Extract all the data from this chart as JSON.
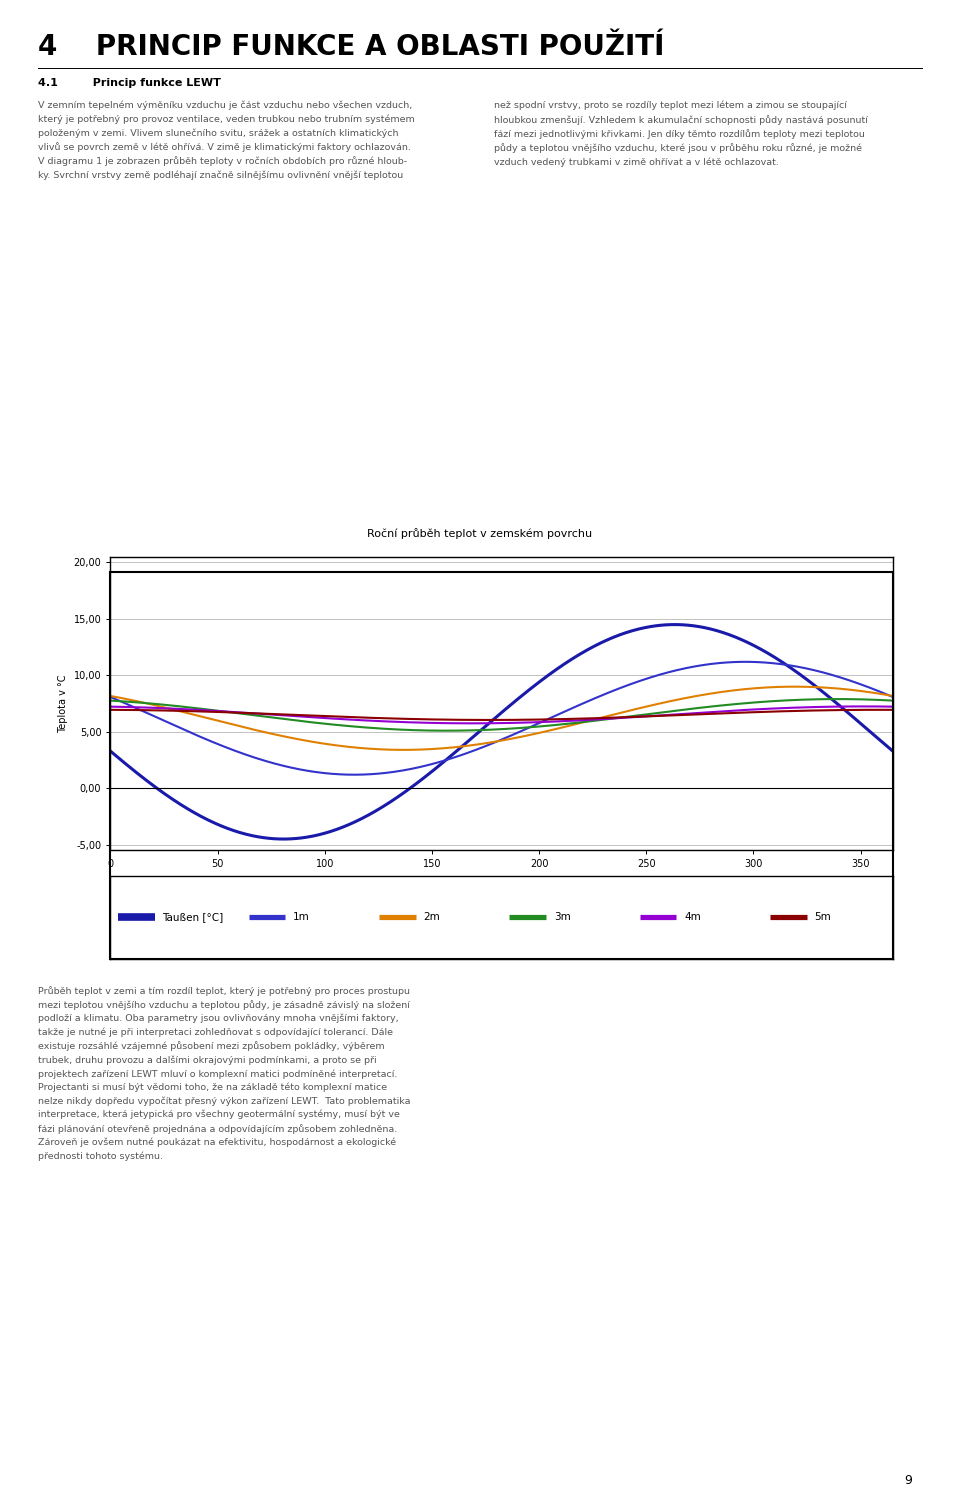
{
  "page_title": "4    PRINCIP FUNKCE A OBLASTI POUŽITÍ",
  "section_title": "4.1         Princip funkce LEWT",
  "para1_left": "V zemním tepelném výměníku vzduchu je část vzduchu nebo všechen vzduch,\nkterý je potřebný pro provoz ventilace, veden trubkou nebo trubním systémem\npoloženým v zemi. Vlivem slunečního svitu, srážek a ostatních klimatických\nvlivů se povrch země v létě ohřívá. V zimě je klimatickými faktory ochlazován.\nV diagramu 1 je zobrazen průběh teploty v ročních obdobích pro různé hloub-\nky. Svrchní vrstvy země podléhají značně silnějšímu ovlivnění vnější teplotou",
  "para1_right": "než spodní vrstvy, proto se rozdíly teplot mezi létem a zimou se stoupající\nhloubkou zmenšují. Vzhledem k akumulační schopnosti půdy nastává posunutí\nfází mezi jednotlivými křivkami. Jen díky těmto rozdílům teploty mezi teplotou\npůdy a teplotou vnějšího vzduchu, které jsou v průběhu roku různé, je možné\nvzduch vedený trubkami v zimě ohřívat a v létě ochlazovat.",
  "chart_title": "Roční průběh teplot v zemském povrchu",
  "ylabel": "Teplota v °C",
  "ylim": [
    -5.5,
    20.5
  ],
  "xlim": [
    0,
    365
  ],
  "yticks": [
    -5.0,
    0.0,
    5.0,
    10.0,
    15.0,
    20.0
  ],
  "ytick_labels": [
    "-5,00",
    "0,00",
    "5,00",
    "10,00",
    "15,00",
    "20,00"
  ],
  "xticks": [
    0,
    50,
    100,
    150,
    200,
    250,
    300,
    350
  ],
  "xtick_labels": [
    "0",
    "50",
    "100",
    "150",
    "200",
    "250",
    "300",
    "350"
  ],
  "series_params": [
    [
      "Taußen [°C]",
      "#1a1aaa",
      2.2,
      9.5,
      5.0,
      172
    ],
    [
      "1m",
      "#3333cc",
      1.5,
      5.0,
      6.2,
      205
    ],
    [
      "2m",
      "#e08000",
      1.5,
      2.8,
      6.2,
      228
    ],
    [
      "3m",
      "#228B22",
      1.5,
      1.4,
      6.5,
      248
    ],
    [
      "4m",
      "#9400D3",
      1.5,
      0.75,
      6.5,
      260
    ],
    [
      "5m",
      "#8B0000",
      1.5,
      0.45,
      6.5,
      268
    ]
  ],
  "para2": "Průběh teplot v zemi a tím rozdíl teplot, který je potřebný pro proces prostupu\nmezi teplotou vnějšího vzduchu a teplotou půdy, je zásadně závislý na složení\npodloží a klimatu. Oba parametry jsou ovlivňovány mnoha vnějšími faktory,\ntakže je nutné je při interpretaci zohledňovat s odpovídající tolerancí. Dále\nexistuje rozsáhlé vzájemné působení mezi způsobem pokládky, výběrem\ntrubek, druhu provozu a dalšími okrajovými podmínkami, a proto se při\nprojektech zařízení LEWT mluví o komplexní matici podmíněné interpretací.\nProjectanti si musí být vědomi toho, že na základě této komplexní matice\nnelze nikdy dopředu vypočítat přesný výkon zařízení LEWT.  Tato problematika\ninterpretace, která jetypická pro všechny geotermální systémy, musí být ve\nfázi plánování otevřeně projednána a odpovídajícím způsobem zohledněna.\nZároveň je ovšem nutné poukázat na efektivitu, hospodárnost a ekologické\npřednosti tohoto systému.",
  "page_number": "9",
  "background": "#ffffff",
  "text_color": "#555555",
  "grid_color": "#aaaaaa",
  "title_fontsize": 20,
  "subtitle_fontsize": 8,
  "body_fontsize": 6.8,
  "chart_title_fontsize": 8
}
